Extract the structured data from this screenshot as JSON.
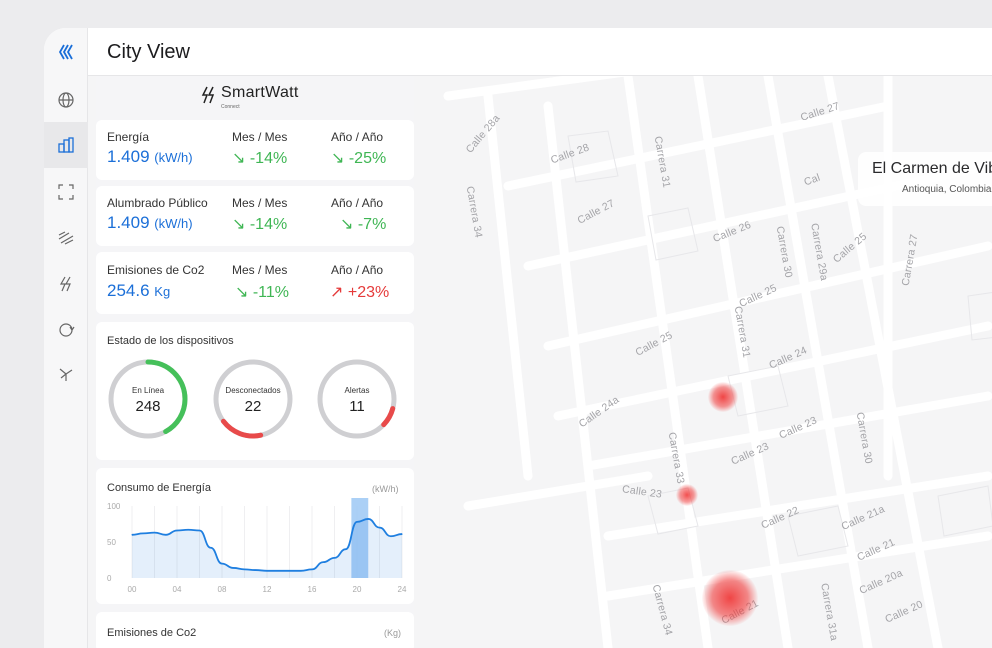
{
  "header": {
    "title": "City View"
  },
  "nav": {
    "items": [
      {
        "name": "logo-icon",
        "active": false
      },
      {
        "name": "globe-icon",
        "active": false
      },
      {
        "name": "buildings-icon",
        "active": true
      },
      {
        "name": "scan-icon",
        "active": false
      },
      {
        "name": "wind-icon",
        "active": false
      },
      {
        "name": "energy-icon",
        "active": false
      },
      {
        "name": "sync-icon",
        "active": false
      },
      {
        "name": "turbine-icon",
        "active": false
      }
    ]
  },
  "brand": {
    "name": "SmartWatt",
    "sub": "Connect"
  },
  "location": {
    "city": "El Carmen de Viboral",
    "region": "Antioquia, Colombia"
  },
  "kpis": [
    {
      "label": "Energía",
      "value": "1.409",
      "unit": "(kW/h)",
      "mom_label": "Mes / Mes",
      "mom": "↘ -14%",
      "mom_dir": "down",
      "yoy_label": "Año / Año",
      "yoy": "↘ -25%",
      "yoy_dir": "down"
    },
    {
      "label": "Alumbrado Público",
      "value": "1.409",
      "unit": "(kW/h)",
      "mom_label": "Mes / Mes",
      "mom": "↘ -14%",
      "mom_dir": "down",
      "yoy_label": "Año / Año",
      "yoy": "↘ -7%",
      "yoy_dir": "down"
    },
    {
      "label": "Emisiones de Co2",
      "value": "254.6",
      "unit": "Kg",
      "mom_label": "Mes / Mes",
      "mom": "↘ -11%",
      "mom_dir": "down",
      "yoy_label": "Año / Año",
      "yoy": "↗ +23%",
      "yoy_dir": "up"
    }
  ],
  "devices": {
    "title": "Estado de los dispositivos",
    "gauges": [
      {
        "label": "En Línea",
        "value": "248",
        "fraction": 0.42,
        "color": "#45c05a"
      },
      {
        "label": "Desconectados",
        "value": "22",
        "fraction": 0.18,
        "color": "#e84a4a"
      },
      {
        "label": "Alertas",
        "value": "11",
        "fraction": 0.08,
        "color": "#e84a4a"
      }
    ]
  },
  "energy_chart": {
    "title": "Consumo de Energía",
    "unit": "(kW/h)",
    "accent": "#1f7fe0",
    "highlight": "#9cc8f5"
  },
  "emissions_card": {
    "title": "Emisiones de Co2",
    "unit": "(Kg)"
  },
  "chart_data": {
    "type": "line",
    "title": "Consumo de Energía",
    "xlabel": "",
    "ylabel": "(kW/h)",
    "xticks": [
      "00",
      "04",
      "08",
      "12",
      "16",
      "20",
      "24"
    ],
    "yticks": [
      "100",
      "50",
      "0"
    ],
    "ylim": [
      0,
      100
    ],
    "xlim": [
      0,
      24
    ],
    "highlight_range": [
      19.5,
      21
    ],
    "series": [
      {
        "x": [
          0,
          1,
          2,
          3,
          4,
          5,
          6,
          7,
          8,
          9,
          10,
          11,
          12,
          13,
          14,
          15,
          16,
          17,
          18,
          19,
          20,
          21,
          22,
          23,
          24
        ],
        "values": [
          60,
          62,
          63,
          60,
          66,
          67,
          66,
          42,
          20,
          14,
          12,
          11,
          10,
          10,
          10,
          10,
          12,
          22,
          28,
          40,
          78,
          82,
          70,
          58,
          61
        ]
      }
    ]
  },
  "streets": [
    "Calle 27",
    "Calle 28a",
    "Calle 28",
    "Carrera 31",
    "Carrera 34",
    "Calle 27",
    "Calle 26",
    "Carrera 30",
    "Carrera 29a",
    "Calle 25",
    "Carrera 27",
    "Calle 25",
    "Carrera 31",
    "Calle 25",
    "Calle 24",
    "Calle 24a",
    "Calle 23",
    "Calle 23",
    "Carrera 33",
    "Carrera 30",
    "Calle 23",
    "Calle 22",
    "Calle 21a",
    "Calle 21",
    "Calle 20a",
    "Calle 20",
    "Carrera 34",
    "Calle 21",
    "Carrera 31a",
    "Cal"
  ],
  "hotspots": [
    {
      "name": "hotspot-1"
    },
    {
      "name": "hotspot-2"
    },
    {
      "name": "hotspot-3"
    }
  ]
}
